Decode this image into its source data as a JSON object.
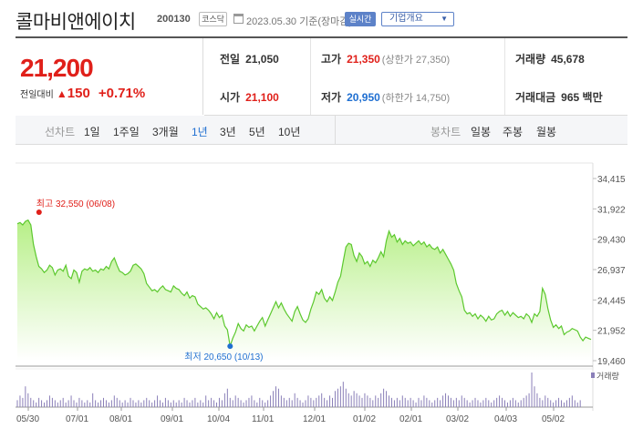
{
  "header": {
    "company": "콜마비앤에이치",
    "code": "200130",
    "market_badge": "코스닥",
    "date_text": "2023.05.30 기준(장마감)",
    "realtime_label": "실시간",
    "corp_overview_label": "기업개요"
  },
  "price": {
    "current": "21,200",
    "change_label": "전일대비",
    "change_value": "150",
    "change_pct": "+0.71%"
  },
  "info": {
    "prev_close_label": "전일",
    "prev_close": "21,050",
    "open_label": "시가",
    "open": "21,100",
    "high_label": "고가",
    "high": "21,350",
    "upper_limit": "(상한가 27,350)",
    "low_label": "저가",
    "low": "20,950",
    "lower_limit": "(하한가 14,750)",
    "volume_label": "거래량",
    "volume": "45,678",
    "amount_label": "거래대금",
    "amount": "965 백만"
  },
  "tabs": {
    "line_label": "선차트",
    "periods": [
      "1일",
      "1주일",
      "3개월",
      "1년",
      "3년",
      "5년",
      "10년"
    ],
    "selected_period": "1년",
    "candle_label": "봉차트",
    "candle_types": [
      "일봉",
      "주봉",
      "월봉"
    ]
  },
  "colors": {
    "up": "#e0201a",
    "down": "#1f6fd1",
    "area_line": "#5cc82e",
    "area_fill_top": "#b8f08a",
    "volume_bar": "#8a7fb8"
  },
  "chart_data": {
    "type": "area",
    "y_ticks": [
      "34,415",
      "31,922",
      "29,430",
      "26,937",
      "24,445",
      "21,952",
      "19,460"
    ],
    "ylim": [
      19460,
      34415
    ],
    "x_labels": [
      "05/30",
      "07/01",
      "08/01",
      "09/01",
      "10/04",
      "11/01",
      "12/01",
      "01/02",
      "02/01",
      "03/02",
      "04/03",
      "05/02"
    ],
    "high_annotation": "최고 32,550 (06/08)",
    "low_annotation": "최저 20,650 (10/13)",
    "high_value": 32550,
    "low_value": 20650,
    "volume_label": "거래량",
    "values": [
      30700,
      30800,
      30600,
      30900,
      31000,
      30600,
      29000,
      28000,
      27200,
      27000,
      26700,
      26900,
      27300,
      27100,
      26500,
      26900,
      27000,
      26800,
      27300,
      26400,
      26200,
      26900,
      26700,
      25900,
      26800,
      27000,
      26900,
      27100,
      26800,
      26900,
      26700,
      27000,
      26900,
      27200,
      27000,
      27600,
      27900,
      27300,
      26800,
      26700,
      26500,
      26600,
      26800,
      27300,
      27400,
      27200,
      27000,
      26600,
      25800,
      25500,
      25200,
      25300,
      25100,
      25400,
      25600,
      25300,
      25200,
      25100,
      25600,
      25400,
      25300,
      25000,
      24800,
      25100,
      24600,
      24800,
      24700,
      24100,
      23900,
      23700,
      23800,
      23600,
      23300,
      22900,
      23400,
      23000,
      23200,
      22300,
      22000,
      20650,
      21300,
      21800,
      22500,
      22100,
      21900,
      22400,
      22200,
      22300,
      21900,
      22300,
      22700,
      23000,
      22300,
      22800,
      23300,
      23800,
      24300,
      23800,
      24200,
      23700,
      23300,
      23000,
      22700,
      23500,
      23900,
      23300,
      22800,
      22600,
      22900,
      23700,
      24300,
      25100,
      24900,
      25300,
      24600,
      24300,
      24700,
      24400,
      25100,
      25900,
      26400,
      27600,
      28800,
      29100,
      29000,
      28100,
      27600,
      28300,
      28000,
      27400,
      27600,
      27200,
      27700,
      27500,
      27900,
      28400,
      28000,
      29300,
      30100,
      29600,
      29800,
      29200,
      29500,
      29000,
      29300,
      29100,
      29200,
      28900,
      29100,
      29300,
      29000,
      29200,
      28800,
      29000,
      28700,
      28600,
      28800,
      28300,
      28600,
      28200,
      27800,
      27400,
      26900,
      25800,
      25200,
      24700,
      23600,
      23300,
      23400,
      23100,
      23300,
      22900,
      23200,
      23000,
      22700,
      23100,
      22800,
      22900,
      23300,
      23500,
      23600,
      23200,
      23500,
      23100,
      23400,
      23200,
      23000,
      23100,
      22900,
      23300,
      23100,
      22600,
      23300,
      23100,
      23500,
      25400,
      24900,
      23700,
      22800,
      22200,
      22400,
      22100,
      22300,
      21600,
      21800,
      21900,
      22100,
      22000,
      21900,
      21400,
      21100,
      21400,
      21300,
      21200
    ]
  }
}
